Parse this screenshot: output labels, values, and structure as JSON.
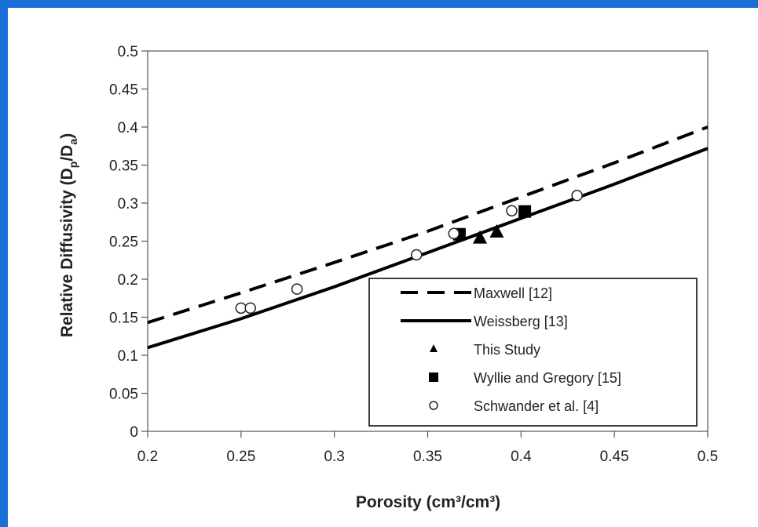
{
  "chart_data": {
    "type": "scatter",
    "xlabel": "Porosity (cm³/cm³)",
    "ylabel_main": "Relative Diffusivity (D",
    "ylabel_sub1": "p",
    "ylabel_mid": "/D",
    "ylabel_sub2": "a",
    "ylabel_end": ")",
    "xlim": [
      0.2,
      0.5
    ],
    "ylim": [
      0,
      0.5
    ],
    "xticks": [
      "0.2",
      "0.25",
      "0.3",
      "0.35",
      "0.4",
      "0.45",
      "0.5"
    ],
    "yticks": [
      "0",
      "0.05",
      "0.1",
      "0.15",
      "0.2",
      "0.25",
      "0.3",
      "0.35",
      "0.4",
      "0.45",
      "0.5"
    ],
    "grid": false,
    "legend_position": "bottom-right",
    "series": [
      {
        "name": "Maxwell [12]",
        "style": "dashed-line",
        "x": [
          0.2,
          0.25,
          0.3,
          0.35,
          0.4,
          0.45,
          0.5
        ],
        "y": [
          0.143,
          0.182,
          0.222,
          0.263,
          0.308,
          0.353,
          0.4
        ]
      },
      {
        "name": "Weissberg [13]",
        "style": "solid-line",
        "x": [
          0.2,
          0.25,
          0.3,
          0.35,
          0.4,
          0.45,
          0.5
        ],
        "y": [
          0.11,
          0.148,
          0.19,
          0.235,
          0.28,
          0.325,
          0.372
        ]
      },
      {
        "name": "This Study",
        "style": "triangle",
        "x": [
          0.378,
          0.387
        ],
        "y": [
          0.254,
          0.262
        ]
      },
      {
        "name": "Wyllie and Gregory [15]",
        "style": "square",
        "x": [
          0.367,
          0.402
        ],
        "y": [
          0.259,
          0.289
        ]
      },
      {
        "name": "Schwander et al. [4]",
        "style": "circle",
        "x": [
          0.25,
          0.255,
          0.28,
          0.344,
          0.364,
          0.395,
          0.43
        ],
        "y": [
          0.162,
          0.162,
          0.187,
          0.232,
          0.26,
          0.29,
          0.31
        ]
      }
    ]
  }
}
